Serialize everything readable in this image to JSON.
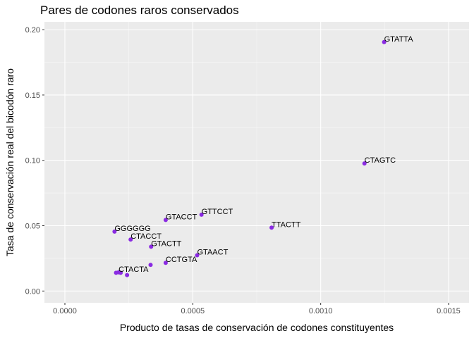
{
  "chart_data": {
    "type": "scatter",
    "title": "Pares de codones raros conservados",
    "xlabel": "Producto de tasas de conservación de codones constituyentes",
    "ylabel": "Tasa de conservación real del bicodón raro",
    "xlim": [
      -8e-05,
      0.00158
    ],
    "ylim": [
      -0.009,
      0.206
    ],
    "x_ticks": [
      {
        "value": 0.0,
        "label": "0.0000"
      },
      {
        "value": 0.0005,
        "label": "0.0005"
      },
      {
        "value": 0.001,
        "label": "0.0010"
      },
      {
        "value": 0.0015,
        "label": "0.0015"
      }
    ],
    "y_ticks": [
      {
        "value": 0.0,
        "label": "0.00"
      },
      {
        "value": 0.05,
        "label": "0.05"
      },
      {
        "value": 0.1,
        "label": "0.10"
      },
      {
        "value": 0.15,
        "label": "0.15"
      },
      {
        "value": 0.2,
        "label": "0.20"
      }
    ],
    "grid": true,
    "point_color": "#8a2be2",
    "panel_background": "#ebebeb",
    "points": [
      {
        "x": 0.001248,
        "y": 0.1905,
        "label": "GTATTA"
      },
      {
        "x": 0.001171,
        "y": 0.0976,
        "label": "CTAGTC"
      },
      {
        "x": 0.000808,
        "y": 0.0485,
        "label": "TTACTT"
      },
      {
        "x": 0.000534,
        "y": 0.0584,
        "label": "GTTCCT"
      },
      {
        "x": 0.000394,
        "y": 0.0544,
        "label": "GTACCT"
      },
      {
        "x": 0.000194,
        "y": 0.0455,
        "label": "GGGGGG"
      },
      {
        "x": 0.000257,
        "y": 0.0394,
        "label": "CTACCT"
      },
      {
        "x": 0.000337,
        "y": 0.0339,
        "label": "GTACTT"
      },
      {
        "x": 0.000517,
        "y": 0.0274,
        "label": "GTAACT"
      },
      {
        "x": 0.000394,
        "y": 0.0216,
        "label": "CCTGTA"
      },
      {
        "x": 0.00021,
        "y": 0.0143,
        "label": "CTACTA"
      },
      {
        "x": 0.000335,
        "y": 0.02,
        "label": ""
      },
      {
        "x": 0.0002,
        "y": 0.014,
        "label": ""
      },
      {
        "x": 0.000218,
        "y": 0.014,
        "label": ""
      },
      {
        "x": 0.000243,
        "y": 0.0122,
        "label": ""
      }
    ]
  }
}
